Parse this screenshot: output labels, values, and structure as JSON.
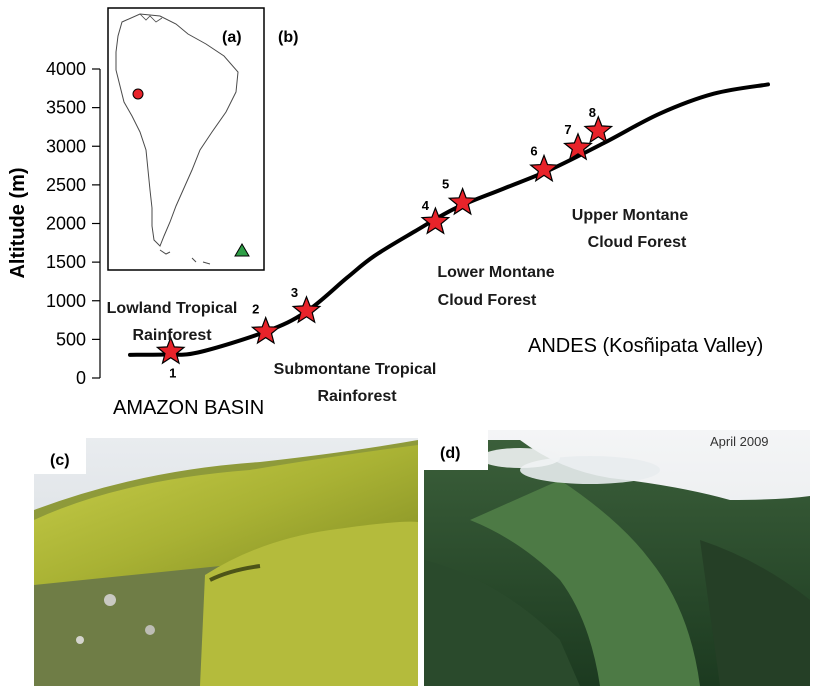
{
  "panels": {
    "a": "(a)",
    "b": "(b)",
    "c": "(c)",
    "d": "(d)"
  },
  "photo_d_caption": "April 2009",
  "chart_data": {
    "type": "line",
    "title": "",
    "xlabel": "",
    "ylabel": "Altitude (m)",
    "yticks": [
      0,
      500,
      1000,
      1500,
      2000,
      2500,
      3000,
      3500,
      4000
    ],
    "ylim": [
      0,
      4000
    ],
    "grid": false,
    "series": [
      {
        "values": [
          {
            "x": 0,
            "y": 300
          },
          {
            "x": 0.5,
            "y": 305
          },
          {
            "x": 1.0,
            "y": 330
          },
          {
            "x": 2.0,
            "y": 600
          },
          {
            "x": 2.6,
            "y": 860
          },
          {
            "x": 3.2,
            "y": 1300
          },
          {
            "x": 3.6,
            "y": 1580
          },
          {
            "x": 4.2,
            "y": 1900
          },
          {
            "x": 4.8,
            "y": 2200
          },
          {
            "x": 5.5,
            "y": 2450
          },
          {
            "x": 6.2,
            "y": 2700
          },
          {
            "x": 7.0,
            "y": 3050
          },
          {
            "x": 7.8,
            "y": 3420
          },
          {
            "x": 8.6,
            "y": 3680
          },
          {
            "x": 9.4,
            "y": 3800
          }
        ]
      }
    ],
    "sites": [
      {
        "label": "1",
        "x": 0.6,
        "y": 340
      },
      {
        "label": "2",
        "x": 2.0,
        "y": 600
      },
      {
        "label": "3",
        "x": 2.6,
        "y": 870
      },
      {
        "label": "4",
        "x": 4.5,
        "y": 2020
      },
      {
        "label": "5",
        "x": 4.9,
        "y": 2270
      },
      {
        "label": "6",
        "x": 6.1,
        "y": 2700
      },
      {
        "label": "7",
        "x": 6.6,
        "y": 2980
      },
      {
        "label": "8",
        "x": 6.9,
        "y": 3200
      }
    ],
    "zones": [
      {
        "lines": [
          "Lowland Tropical",
          "Rainforest"
        ]
      },
      {
        "lines": [
          "Submontane Tropical",
          "Rainforest"
        ]
      },
      {
        "lines": [
          "Lower Montane",
          "Cloud Forest"
        ]
      },
      {
        "lines": [
          "Upper Montane",
          "Cloud Forest"
        ]
      }
    ],
    "regions": [
      "AMAZON BASIN",
      "ANDES (Kosñipata Valley)"
    ],
    "colors": {
      "line": "#000000",
      "star": "#e8232a",
      "marker_dot": "#e8232a",
      "marker_triangle": "#2e9e46"
    }
  }
}
